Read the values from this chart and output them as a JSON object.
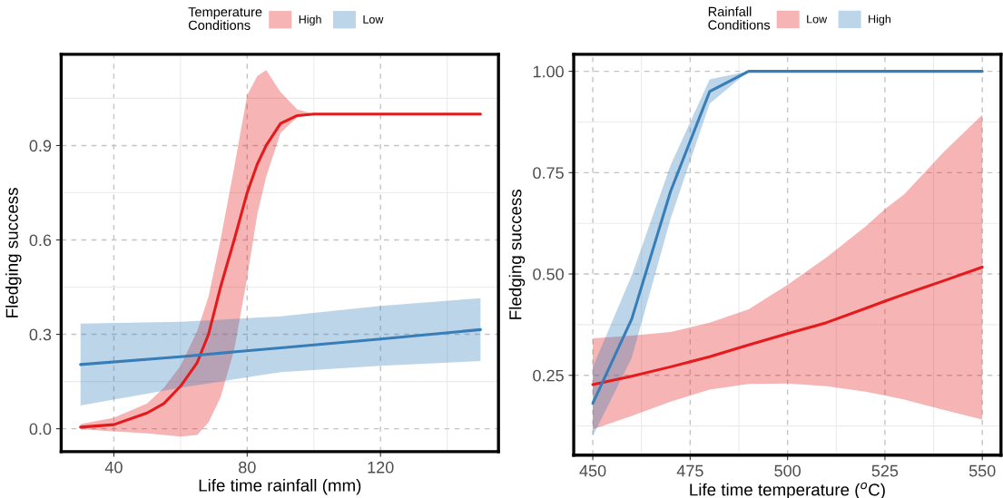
{
  "chart_data": [
    {
      "type": "line",
      "xlabel": "Life time rainfall (mm)",
      "ylabel": "Fledging success",
      "legend_title": "Temperature\nConditions",
      "legend": "top",
      "grid": true,
      "line_style": "solid",
      "xlim": [
        24.2,
        155.4
      ],
      "xticks": [
        40,
        80,
        120
      ],
      "ylim": [
        -0.073,
        1.19
      ],
      "yticks": [
        {
          "value": 0,
          "label": "0.0"
        },
        0.3,
        0.6,
        0.9
      ],
      "series": [
        {
          "name": "High",
          "color": "#e41a1c",
          "x": [
            30,
            40,
            50,
            55,
            60,
            65,
            68.4,
            72,
            76.1,
            80,
            83,
            85.7,
            90,
            95,
            100,
            150
          ],
          "values": [
            0.005,
            0.013,
            0.05,
            0.08,
            0.135,
            0.21,
            0.3,
            0.45,
            0.6,
            0.75,
            0.84,
            0.9,
            0.97,
            0.995,
            1.0,
            1.0
          ],
          "lower": [
            -0.002,
            -0.008,
            -0.015,
            -0.02,
            -0.025,
            -0.02,
            0.02,
            0.1,
            0.25,
            0.48,
            0.68,
            0.8,
            0.94,
            0.99,
            1.0,
            1.0
          ],
          "upper": [
            0.015,
            0.035,
            0.08,
            0.13,
            0.2,
            0.31,
            0.42,
            0.6,
            0.83,
            1.06,
            1.12,
            1.14,
            1.07,
            1.015,
            1.0,
            1.0
          ]
        },
        {
          "name": "Low",
          "color": "#377eb8",
          "x": [
            30,
            60,
            90,
            120,
            150
          ],
          "values": [
            0.204,
            0.229,
            0.257,
            0.285,
            0.315
          ],
          "lower": [
            0.074,
            0.13,
            0.18,
            0.2,
            0.215
          ],
          "upper": [
            0.334,
            0.34,
            0.357,
            0.39,
            0.415
          ]
        }
      ]
    },
    {
      "type": "line",
      "xlabel": "Life time temperature ($^{o}$C)",
      "ylabel": "Fledging success",
      "legend_title": "Rainfall\nConditions",
      "legend": "top",
      "grid": true,
      "line_style": "solid",
      "xlim": [
        445.1,
        554.8
      ],
      "xticks": [
        450,
        475,
        500,
        525,
        550
      ],
      "ylim": [
        0.053,
        1.042
      ],
      "yticks": [
        {
          "value": 0.25,
          "label": "0.25"
        },
        {
          "value": 0.5,
          "label": "0.50"
        },
        {
          "value": 0.75,
          "label": "0.75"
        },
        {
          "value": 1.0,
          "label": "1.00"
        }
      ],
      "series": [
        {
          "name": "Low",
          "color": "#e41a1c",
          "x": [
            450,
            460,
            470,
            480,
            490,
            500,
            510,
            520,
            525,
            530,
            540,
            550
          ],
          "values": [
            0.227,
            0.248,
            0.271,
            0.296,
            0.325,
            0.353,
            0.38,
            0.415,
            0.433,
            0.45,
            0.483,
            0.517
          ],
          "lower": [
            0.117,
            0.15,
            0.185,
            0.215,
            0.229,
            0.23,
            0.223,
            0.21,
            0.2,
            0.19,
            0.165,
            0.141
          ],
          "upper": [
            0.341,
            0.348,
            0.357,
            0.38,
            0.413,
            0.473,
            0.541,
            0.617,
            0.66,
            0.697,
            0.8,
            0.893
          ]
        },
        {
          "name": "High",
          "color": "#377eb8",
          "x": [
            450,
            460,
            470,
            480,
            490,
            500,
            525,
            550
          ],
          "values": [
            0.181,
            0.389,
            0.705,
            0.95,
            1.0,
            1.0,
            1.0,
            1.0
          ],
          "lower": [
            0.1,
            0.293,
            0.637,
            0.92,
            1.0,
            1.0,
            1.0,
            1.0
          ],
          "upper": [
            0.27,
            0.497,
            0.769,
            0.98,
            1.0,
            1.0,
            1.0,
            1.0
          ]
        }
      ]
    }
  ]
}
